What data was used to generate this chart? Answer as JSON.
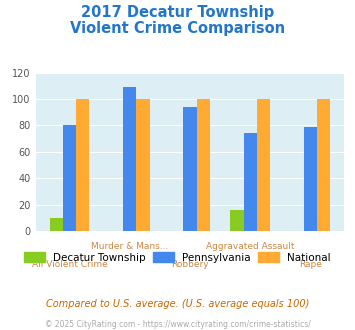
{
  "title_line1": "2017 Decatur Township",
  "title_line2": "Violent Crime Comparison",
  "title_color": "#2277cc",
  "categories": [
    "All Violent Crime",
    "Murder & Mans...",
    "Robbery",
    "Aggravated Assault",
    "Rape"
  ],
  "decatur": [
    10,
    0,
    0,
    16,
    0
  ],
  "pennsylvania": [
    80,
    109,
    94,
    74,
    79
  ],
  "national": [
    100,
    100,
    100,
    100,
    100
  ],
  "color_decatur": "#88cc22",
  "color_pennsylvania": "#4488ee",
  "color_national": "#ffaa33",
  "ylim": [
    0,
    120
  ],
  "yticks": [
    0,
    20,
    40,
    60,
    80,
    100,
    120
  ],
  "bg_color": "#ddeef5",
  "legend_labels": [
    "Decatur Township",
    "Pennsylvania",
    "National"
  ],
  "footnote1": "Compared to U.S. average. (U.S. average equals 100)",
  "footnote2": "© 2025 CityRating.com - https://www.cityrating.com/crime-statistics/",
  "footnote1_color": "#cc6600",
  "footnote2_color": "#aaaaaa",
  "xtick_color": "#cc8844",
  "bar_width": 0.22
}
